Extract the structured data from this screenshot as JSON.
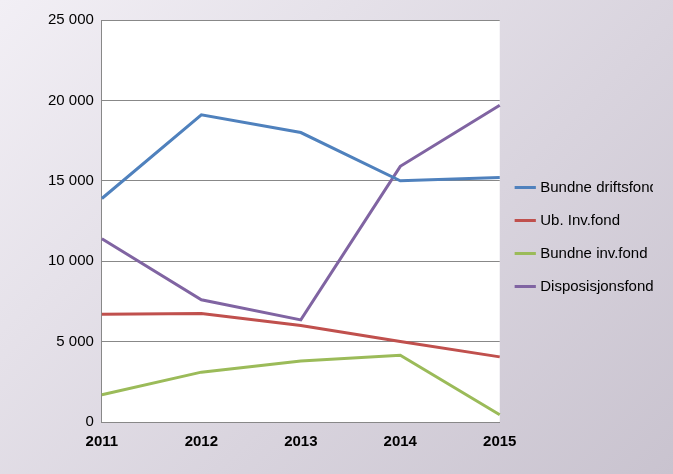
{
  "chart_data": {
    "type": "line",
    "categories": [
      "2011",
      "2012",
      "2013",
      "2014",
      "2015"
    ],
    "series": [
      {
        "name": "Bundne driftsfond",
        "color": "#4f81bd",
        "values": [
          13900,
          19100,
          18000,
          15000,
          15200
        ]
      },
      {
        "name": "Ub. Inv.fond",
        "color": "#c0504d",
        "values": [
          6700,
          6750,
          6000,
          5000,
          4050
        ]
      },
      {
        "name": "Bundne inv.fond",
        "color": "#9bbb59",
        "values": [
          1700,
          3100,
          3800,
          4150,
          450
        ]
      },
      {
        "name": "Disposisjonsfond",
        "color": "#8064a2",
        "values": [
          11400,
          7600,
          6350,
          15900,
          19700
        ]
      }
    ],
    "ylim": [
      0,
      25000
    ],
    "yticks": [
      0,
      {
        "value": 5000,
        "label": "5 000"
      },
      {
        "value": 10000,
        "label": "10 000"
      },
      {
        "value": 15000,
        "label": "15 000"
      },
      {
        "value": 20000,
        "label": "20 000"
      },
      {
        "value": 25000,
        "label": "25 000"
      }
    ],
    "grid": true,
    "legend": "right"
  }
}
